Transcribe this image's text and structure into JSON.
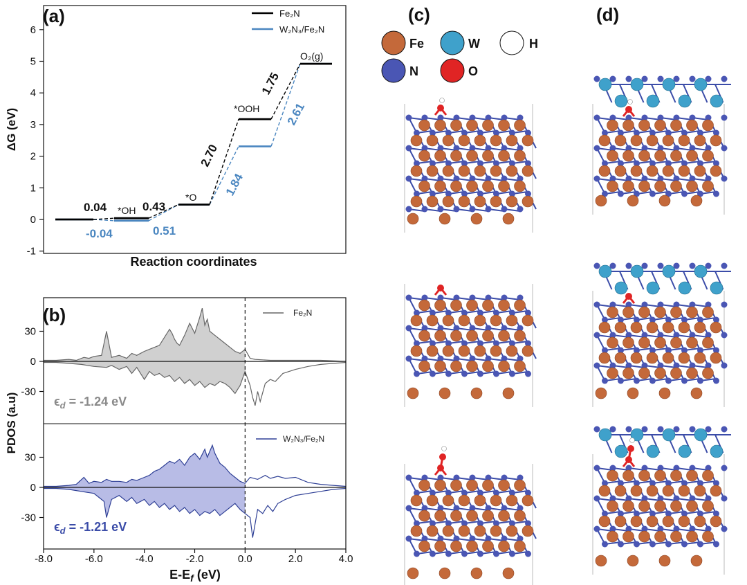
{
  "panels": {
    "a": "(a)",
    "b": "(b)",
    "c": "(c)",
    "d": "(d)"
  },
  "chart_data": [
    {
      "type": "line",
      "panel": "(a)",
      "ylabel": "ΔG (eV)",
      "xlabel": "Reaction coordinates",
      "ylim": [
        -1,
        6.5
      ],
      "yticks": [
        -1,
        0,
        1,
        2,
        3,
        4,
        5,
        6
      ],
      "legend_position": "top-right",
      "legend": [
        {
          "label": "Fe₂N",
          "color": "#000000"
        },
        {
          "label": "W₂N₃/Fe₂N",
          "color": "#4a86c0"
        }
      ],
      "states": [
        "",
        "*OH",
        "*O",
        "*OOH",
        "O₂(g)"
      ],
      "series": [
        {
          "name": "Fe₂N",
          "color": "#000000",
          "energies": [
            0.0,
            0.04,
            0.47,
            3.17,
            4.92
          ]
        },
        {
          "name": "W₂N₃/Fe₂N",
          "color": "#4a86c0",
          "energies": [
            0.0,
            -0.04,
            0.47,
            2.31,
            4.92
          ]
        }
      ],
      "step_labels": [
        {
          "text": "0.04",
          "color": "#111111"
        },
        {
          "text": "0.43",
          "color": "#111111"
        },
        {
          "text": "2.70",
          "color": "#111111"
        },
        {
          "text": "1.75",
          "color": "#111111"
        },
        {
          "text": "-0.04",
          "color": "#4a86c0"
        },
        {
          "text": "0.51",
          "color": "#4a86c0"
        },
        {
          "text": "1.84",
          "color": "#4a86c0"
        },
        {
          "text": "2.61",
          "color": "#4a86c0"
        }
      ]
    },
    {
      "type": "area",
      "panel": "(b)",
      "ylabel": "PDOS (a.u)",
      "xlabel": "E-E",
      "xlabel_sub": "f",
      "xlabel_unit": " (eV)",
      "xlim": [
        -8.0,
        4.0
      ],
      "xticks": [
        "-8.0",
        "-6.0",
        "-4.0",
        "-2.0",
        "0.0",
        "2.0",
        "4.0"
      ],
      "yticks": [
        "30",
        "0",
        "-30"
      ],
      "fermi_level": 0.0,
      "series": [
        {
          "name": "Fe₂N",
          "color": "#666666",
          "fill": "#d0d0d0",
          "d_band_label": {
            "symbol": "ϵ",
            "sub": "d",
            "text": " = -1.24 eV"
          },
          "spin_up": [
            [
              -8.0,
              1
            ],
            [
              -7.5,
              1
            ],
            [
              -7.0,
              2
            ],
            [
              -6.7,
              1
            ],
            [
              -6.4,
              4
            ],
            [
              -6.2,
              3
            ],
            [
              -6.0,
              5
            ],
            [
              -5.7,
              6
            ],
            [
              -5.5,
              30
            ],
            [
              -5.3,
              4
            ],
            [
              -5.0,
              6
            ],
            [
              -4.7,
              3
            ],
            [
              -4.5,
              8
            ],
            [
              -4.3,
              6
            ],
            [
              -4.0,
              10
            ],
            [
              -3.8,
              12
            ],
            [
              -3.6,
              14
            ],
            [
              -3.4,
              16
            ],
            [
              -3.2,
              24
            ],
            [
              -3.0,
              32
            ],
            [
              -2.9,
              28
            ],
            [
              -2.8,
              22
            ],
            [
              -2.7,
              18
            ],
            [
              -2.6,
              16
            ],
            [
              -2.4,
              26
            ],
            [
              -2.2,
              38
            ],
            [
              -2.0,
              28
            ],
            [
              -1.8,
              44
            ],
            [
              -1.7,
              53
            ],
            [
              -1.6,
              36
            ],
            [
              -1.5,
              42
            ],
            [
              -1.4,
              30
            ],
            [
              -1.2,
              26
            ],
            [
              -1.0,
              22
            ],
            [
              -0.8,
              18
            ],
            [
              -0.6,
              14
            ],
            [
              -0.4,
              10
            ],
            [
              -0.2,
              8
            ],
            [
              0.0,
              12
            ],
            [
              0.2,
              3
            ],
            [
              0.4,
              2
            ],
            [
              1.0,
              1
            ],
            [
              2.0,
              1
            ],
            [
              3.0,
              1
            ],
            [
              4.0,
              0
            ]
          ],
          "spin_down": [
            [
              -8.0,
              -1
            ],
            [
              -7.5,
              -1
            ],
            [
              -7.0,
              -2
            ],
            [
              -6.5,
              -3
            ],
            [
              -6.0,
              -5
            ],
            [
              -5.5,
              -6
            ],
            [
              -5.3,
              -4
            ],
            [
              -5.0,
              -8
            ],
            [
              -4.7,
              -5
            ],
            [
              -4.5,
              -12
            ],
            [
              -4.3,
              -6
            ],
            [
              -4.0,
              -18
            ],
            [
              -3.8,
              -10
            ],
            [
              -3.6,
              -14
            ],
            [
              -3.4,
              -12
            ],
            [
              -3.2,
              -16
            ],
            [
              -3.0,
              -14
            ],
            [
              -2.8,
              -20
            ],
            [
              -2.6,
              -16
            ],
            [
              -2.4,
              -22
            ],
            [
              -2.2,
              -18
            ],
            [
              -2.0,
              -24
            ],
            [
              -1.8,
              -20
            ],
            [
              -1.6,
              -26
            ],
            [
              -1.4,
              -22
            ],
            [
              -1.2,
              -24
            ],
            [
              -1.0,
              -20
            ],
            [
              -0.8,
              -22
            ],
            [
              -0.6,
              -26
            ],
            [
              -0.4,
              -32
            ],
            [
              -0.2,
              -24
            ],
            [
              0.0,
              -10
            ],
            [
              0.2,
              -24
            ],
            [
              0.3,
              -36
            ],
            [
              0.4,
              -44
            ],
            [
              0.5,
              -30
            ],
            [
              0.6,
              -40
            ],
            [
              0.8,
              -22
            ],
            [
              1.0,
              -18
            ],
            [
              1.2,
              -20
            ],
            [
              1.5,
              -12
            ],
            [
              2.0,
              -8
            ],
            [
              2.5,
              -5
            ],
            [
              3.0,
              -3
            ],
            [
              3.5,
              -2
            ],
            [
              4.0,
              -1
            ]
          ]
        },
        {
          "name": "W₂N₃/Fe₂N",
          "color": "#2e3f95",
          "fill": "#b8bce6",
          "d_band_label": {
            "symbol": "ϵ",
            "sub": "d",
            "text": " = -1.21 eV"
          },
          "spin_up": [
            [
              -8.0,
              1
            ],
            [
              -7.5,
              1
            ],
            [
              -7.0,
              2
            ],
            [
              -6.7,
              3
            ],
            [
              -6.4,
              10
            ],
            [
              -6.2,
              4
            ],
            [
              -6.0,
              6
            ],
            [
              -5.7,
              5
            ],
            [
              -5.5,
              8
            ],
            [
              -5.3,
              6
            ],
            [
              -5.0,
              6
            ],
            [
              -4.7,
              5
            ],
            [
              -4.5,
              8
            ],
            [
              -4.3,
              7
            ],
            [
              -4.0,
              10
            ],
            [
              -3.8,
              12
            ],
            [
              -3.6,
              16
            ],
            [
              -3.4,
              18
            ],
            [
              -3.2,
              22
            ],
            [
              -3.0,
              26
            ],
            [
              -2.8,
              24
            ],
            [
              -2.6,
              28
            ],
            [
              -2.4,
              22
            ],
            [
              -2.2,
              30
            ],
            [
              -2.0,
              34
            ],
            [
              -1.8,
              28
            ],
            [
              -1.6,
              38
            ],
            [
              -1.5,
              30
            ],
            [
              -1.3,
              42
            ],
            [
              -1.2,
              34
            ],
            [
              -1.0,
              24
            ],
            [
              -0.8,
              20
            ],
            [
              -0.6,
              14
            ],
            [
              -0.4,
              10
            ],
            [
              -0.2,
              6
            ],
            [
              0.0,
              4
            ],
            [
              0.2,
              10
            ],
            [
              0.5,
              8
            ],
            [
              0.8,
              12
            ],
            [
              1.0,
              9
            ],
            [
              1.3,
              11
            ],
            [
              1.6,
              9
            ],
            [
              2.0,
              10
            ],
            [
              2.5,
              5
            ],
            [
              3.0,
              3
            ],
            [
              3.5,
              2
            ],
            [
              4.0,
              1
            ]
          ],
          "spin_down": [
            [
              -8.0,
              -1
            ],
            [
              -7.5,
              -1
            ],
            [
              -7.0,
              -2
            ],
            [
              -6.5,
              -4
            ],
            [
              -6.0,
              -6
            ],
            [
              -5.8,
              -10
            ],
            [
              -5.6,
              -14
            ],
            [
              -5.5,
              -30
            ],
            [
              -5.3,
              -12
            ],
            [
              -5.0,
              -8
            ],
            [
              -4.7,
              -14
            ],
            [
              -4.5,
              -10
            ],
            [
              -4.3,
              -16
            ],
            [
              -4.0,
              -12
            ],
            [
              -3.8,
              -18
            ],
            [
              -3.6,
              -14
            ],
            [
              -3.4,
              -20
            ],
            [
              -3.2,
              -16
            ],
            [
              -3.0,
              -22
            ],
            [
              -2.8,
              -18
            ],
            [
              -2.6,
              -24
            ],
            [
              -2.4,
              -20
            ],
            [
              -2.2,
              -26
            ],
            [
              -2.0,
              -22
            ],
            [
              -1.8,
              -28
            ],
            [
              -1.6,
              -24
            ],
            [
              -1.4,
              -26
            ],
            [
              -1.2,
              -22
            ],
            [
              -1.0,
              -28
            ],
            [
              -0.8,
              -24
            ],
            [
              -0.6,
              -20
            ],
            [
              -0.4,
              -16
            ],
            [
              -0.2,
              -22
            ],
            [
              0.0,
              -26
            ],
            [
              0.2,
              -30
            ],
            [
              0.3,
              -50
            ],
            [
              0.4,
              -36
            ],
            [
              0.5,
              -22
            ],
            [
              0.7,
              -26
            ],
            [
              0.9,
              -18
            ],
            [
              1.1,
              -24
            ],
            [
              1.3,
              -16
            ],
            [
              1.6,
              -12
            ],
            [
              2.0,
              -8
            ],
            [
              2.5,
              -6
            ],
            [
              3.0,
              -4
            ],
            [
              3.5,
              -2
            ],
            [
              4.0,
              -1
            ]
          ]
        }
      ]
    }
  ],
  "atom_legend": [
    {
      "label": "Fe",
      "color": "#c4693a"
    },
    {
      "label": "W",
      "color": "#3fa1cb"
    },
    {
      "label": "H",
      "color": "#ffffff"
    },
    {
      "label": "N",
      "color": "#4a56b4"
    },
    {
      "label": "O",
      "color": "#e02424"
    }
  ],
  "colors": {
    "fe": "#c4693a",
    "w": "#3fa1cb",
    "n": "#4a56b4",
    "o": "#e02424",
    "h": "#ffffff",
    "bond": "#3b4ca8"
  }
}
